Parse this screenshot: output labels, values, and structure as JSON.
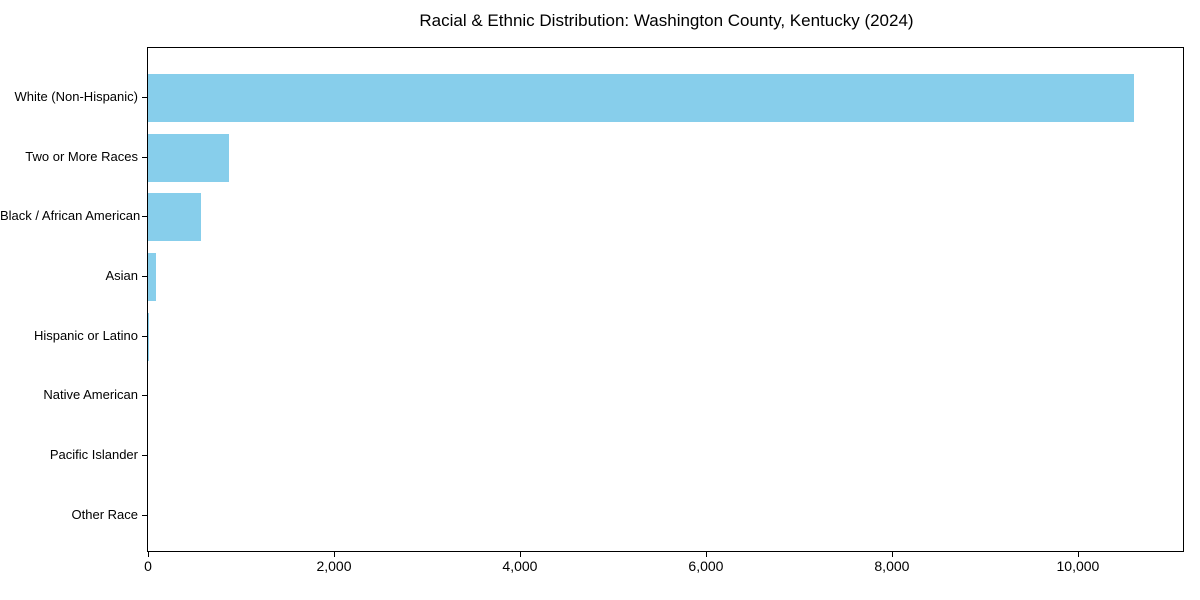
{
  "chart_data": {
    "type": "bar",
    "orientation": "horizontal",
    "title": "Racial & Ethnic Distribution: Washington County, Kentucky (2024)",
    "categories": [
      "White (Non-Hispanic)",
      "Two or More Races",
      "Black / African American",
      "Asian",
      "Hispanic or Latino",
      "Native American",
      "Pacific Islander",
      "Other Race"
    ],
    "values": [
      10600,
      870,
      570,
      85,
      12,
      0,
      0,
      0
    ],
    "xlabel": "",
    "ylabel": "",
    "xlim": [
      0,
      11130
    ],
    "x_ticks": [
      0,
      2000,
      4000,
      6000,
      8000,
      10000
    ],
    "x_tick_labels": [
      "0",
      "2,000",
      "4,000",
      "6,000",
      "8,000",
      "10,000"
    ],
    "bar_color": "#87CEEB",
    "axis_color": "#000000",
    "text_color": "#000000",
    "background_color": "#FFFFFF",
    "grid": false,
    "legend": false
  }
}
